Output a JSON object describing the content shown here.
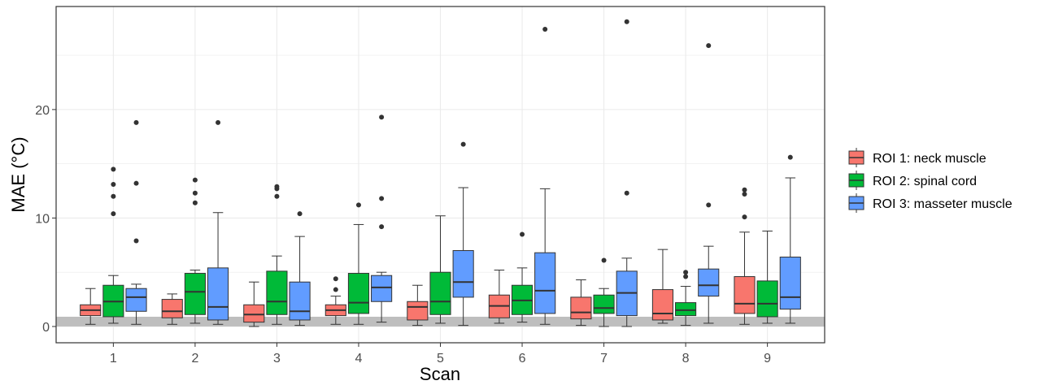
{
  "chart_data": {
    "type": "box",
    "xlabel": "Scan",
    "ylabel": "MAE (°C)",
    "categories": [
      "1",
      "2",
      "3",
      "4",
      "5",
      "6",
      "7",
      "8",
      "9"
    ],
    "ylim": [
      -1.5,
      29.5
    ],
    "y_ticks": [
      0,
      10,
      20
    ],
    "grid": true,
    "legend_position": "right",
    "reference_band": {
      "from": 0.0,
      "to": 0.9,
      "color": "#bebebe"
    },
    "series": [
      {
        "name": "ROI 1: neck muscle",
        "color": "#F8766D",
        "boxes": [
          {
            "whisker_low": 0.2,
            "q1": 1.0,
            "median": 1.5,
            "q3": 2.0,
            "whisker_high": 3.5,
            "outliers": []
          },
          {
            "whisker_low": 0.2,
            "q1": 0.8,
            "median": 1.4,
            "q3": 2.5,
            "whisker_high": 3.0,
            "outliers": []
          },
          {
            "whisker_low": 0.0,
            "q1": 0.4,
            "median": 1.1,
            "q3": 2.0,
            "whisker_high": 4.1,
            "outliers": []
          },
          {
            "whisker_low": 0.2,
            "q1": 1.0,
            "median": 1.5,
            "q3": 2.0,
            "whisker_high": 2.8,
            "outliers": [
              3.4,
              4.4
            ]
          },
          {
            "whisker_low": 0.1,
            "q1": 0.6,
            "median": 1.8,
            "q3": 2.3,
            "whisker_high": 3.8,
            "outliers": []
          },
          {
            "whisker_low": 0.3,
            "q1": 0.8,
            "median": 1.9,
            "q3": 2.9,
            "whisker_high": 5.2,
            "outliers": []
          },
          {
            "whisker_low": 0.1,
            "q1": 0.7,
            "median": 1.3,
            "q3": 2.7,
            "whisker_high": 4.3,
            "outliers": []
          },
          {
            "whisker_low": 0.3,
            "q1": 0.6,
            "median": 1.2,
            "q3": 3.4,
            "whisker_high": 7.1,
            "outliers": []
          },
          {
            "whisker_low": 0.2,
            "q1": 1.2,
            "median": 2.1,
            "q3": 4.6,
            "whisker_high": 8.7,
            "outliers": [
              10.1,
              12.2,
              12.6
            ]
          }
        ]
      },
      {
        "name": "ROI 2: spinal cord",
        "color": "#00BA38",
        "boxes": [
          {
            "whisker_low": 0.3,
            "q1": 0.9,
            "median": 2.3,
            "q3": 3.8,
            "whisker_high": 4.7,
            "outliers": [
              10.4,
              12.0,
              13.1,
              14.5
            ]
          },
          {
            "whisker_low": 0.3,
            "q1": 1.1,
            "median": 3.2,
            "q3": 4.9,
            "whisker_high": 5.2,
            "outliers": [
              11.4,
              12.3,
              13.5
            ]
          },
          {
            "whisker_low": 0.2,
            "q1": 1.1,
            "median": 2.3,
            "q3": 5.1,
            "whisker_high": 6.5,
            "outliers": [
              12.0,
              12.7,
              12.9
            ]
          },
          {
            "whisker_low": 0.2,
            "q1": 1.2,
            "median": 2.2,
            "q3": 4.9,
            "whisker_high": 9.4,
            "outliers": [
              11.2
            ]
          },
          {
            "whisker_low": 0.3,
            "q1": 1.1,
            "median": 2.3,
            "q3": 5.0,
            "whisker_high": 10.2,
            "outliers": []
          },
          {
            "whisker_low": 0.4,
            "q1": 1.1,
            "median": 2.4,
            "q3": 3.8,
            "whisker_high": 5.4,
            "outliers": [
              8.5
            ]
          },
          {
            "whisker_low": 0.0,
            "q1": 1.2,
            "median": 1.7,
            "q3": 2.9,
            "whisker_high": 3.5,
            "outliers": [
              6.1
            ]
          },
          {
            "whisker_low": 0.1,
            "q1": 1.0,
            "median": 1.5,
            "q3": 2.2,
            "whisker_high": 3.7,
            "outliers": [
              4.6,
              5.0
            ]
          },
          {
            "whisker_low": 0.3,
            "q1": 0.9,
            "median": 2.1,
            "q3": 4.2,
            "whisker_high": 8.8,
            "outliers": []
          }
        ]
      },
      {
        "name": "ROI 3: masseter muscle",
        "color": "#619CFF",
        "boxes": [
          {
            "whisker_low": 0.2,
            "q1": 1.4,
            "median": 2.7,
            "q3": 3.5,
            "whisker_high": 3.9,
            "outliers": [
              7.9,
              13.2,
              18.8
            ]
          },
          {
            "whisker_low": 0.2,
            "q1": 0.6,
            "median": 1.8,
            "q3": 5.4,
            "whisker_high": 10.5,
            "outliers": [
              18.8
            ]
          },
          {
            "whisker_low": 0.1,
            "q1": 0.6,
            "median": 1.4,
            "q3": 4.1,
            "whisker_high": 8.3,
            "outliers": [
              10.4
            ]
          },
          {
            "whisker_low": 0.4,
            "q1": 2.3,
            "median": 3.6,
            "q3": 4.7,
            "whisker_high": 5.0,
            "outliers": [
              9.2,
              11.8,
              19.3
            ]
          },
          {
            "whisker_low": 0.1,
            "q1": 2.7,
            "median": 4.1,
            "q3": 7.0,
            "whisker_high": 12.8,
            "outliers": [
              16.8
            ]
          },
          {
            "whisker_low": 0.2,
            "q1": 1.2,
            "median": 3.3,
            "q3": 6.8,
            "whisker_high": 12.7,
            "outliers": [
              27.4
            ]
          },
          {
            "whisker_low": 0.0,
            "q1": 1.0,
            "median": 3.1,
            "q3": 5.1,
            "whisker_high": 6.3,
            "outliers": [
              12.3,
              28.1
            ]
          },
          {
            "whisker_low": 0.3,
            "q1": 2.8,
            "median": 3.8,
            "q3": 5.3,
            "whisker_high": 7.4,
            "outliers": [
              11.2,
              25.9
            ]
          },
          {
            "whisker_low": 0.3,
            "q1": 1.6,
            "median": 2.7,
            "q3": 6.4,
            "whisker_high": 13.7,
            "outliers": [
              15.6
            ]
          }
        ]
      }
    ]
  }
}
